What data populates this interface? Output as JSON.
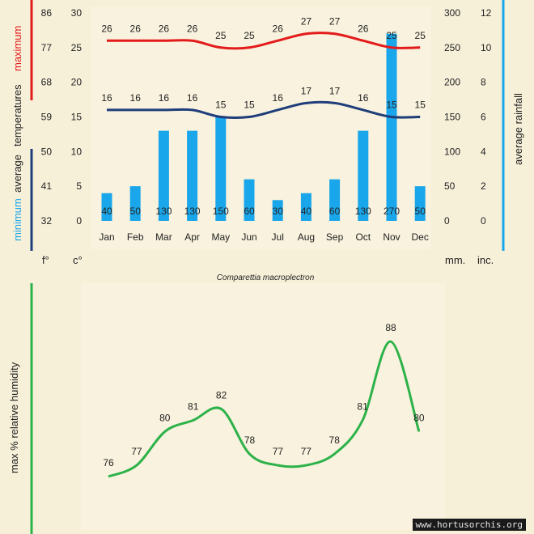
{
  "colors": {
    "background": "#f7f0d9",
    "panel": "#f9f2de",
    "max_temp": "#e31b1b",
    "min_temp": "#1f3d7a",
    "rainfall": "#1aa6ea",
    "humidity": "#2db24a",
    "text": "#222222"
  },
  "chart_data": [
    {
      "type": "bar",
      "title": "",
      "caption": "Comparettia macroplectron",
      "categories": [
        "Jan",
        "Feb",
        "Mar",
        "Apr",
        "May",
        "Jun",
        "Jul",
        "Aug",
        "Sep",
        "Oct",
        "Nov",
        "Dec"
      ],
      "y_left_label_minimum": "minimum",
      "y_left_label_average": "average",
      "y_left_label_temperatures": "temperatures",
      "y_left_label_maximum": "maximum",
      "y_right_label": "average rainfall",
      "unit_f": "f°",
      "unit_c": "c°",
      "unit_mm": "mm.",
      "unit_inc": "inc.",
      "celsius_ticks": [
        0,
        5,
        10,
        15,
        20,
        25,
        30
      ],
      "fahrenheit_ticks": [
        32,
        41,
        50,
        59,
        68,
        77,
        86
      ],
      "mm_ticks": [
        0,
        50,
        100,
        150,
        200,
        250,
        300
      ],
      "inch_ticks": [
        0,
        2,
        4,
        6,
        8,
        10,
        12
      ],
      "ylim_celsius": [
        0,
        30
      ],
      "ylim_mm": [
        0,
        300
      ],
      "series": [
        {
          "name": "maximum",
          "type": "line",
          "values": [
            26,
            26,
            26,
            26,
            25,
            25,
            26,
            27,
            27,
            26,
            25,
            25
          ]
        },
        {
          "name": "minimum",
          "type": "line",
          "values": [
            16,
            16,
            16,
            16,
            15,
            15,
            16,
            17,
            17,
            16,
            15,
            15
          ]
        },
        {
          "name": "average rainfall",
          "type": "bar",
          "values": [
            40,
            50,
            130,
            130,
            150,
            60,
            30,
            40,
            60,
            130,
            270,
            50
          ]
        }
      ]
    },
    {
      "type": "line",
      "ylabel": "max % relative humidity",
      "categories": [
        "Jan",
        "Feb",
        "Mar",
        "Apr",
        "May",
        "Jun",
        "Jul",
        "Aug",
        "Sep",
        "Oct",
        "Nov",
        "Dec"
      ],
      "values": [
        76,
        77,
        80,
        81,
        82,
        78,
        77,
        77,
        78,
        81,
        88,
        80
      ]
    }
  ],
  "watermark": "www.hortusorchis.org"
}
